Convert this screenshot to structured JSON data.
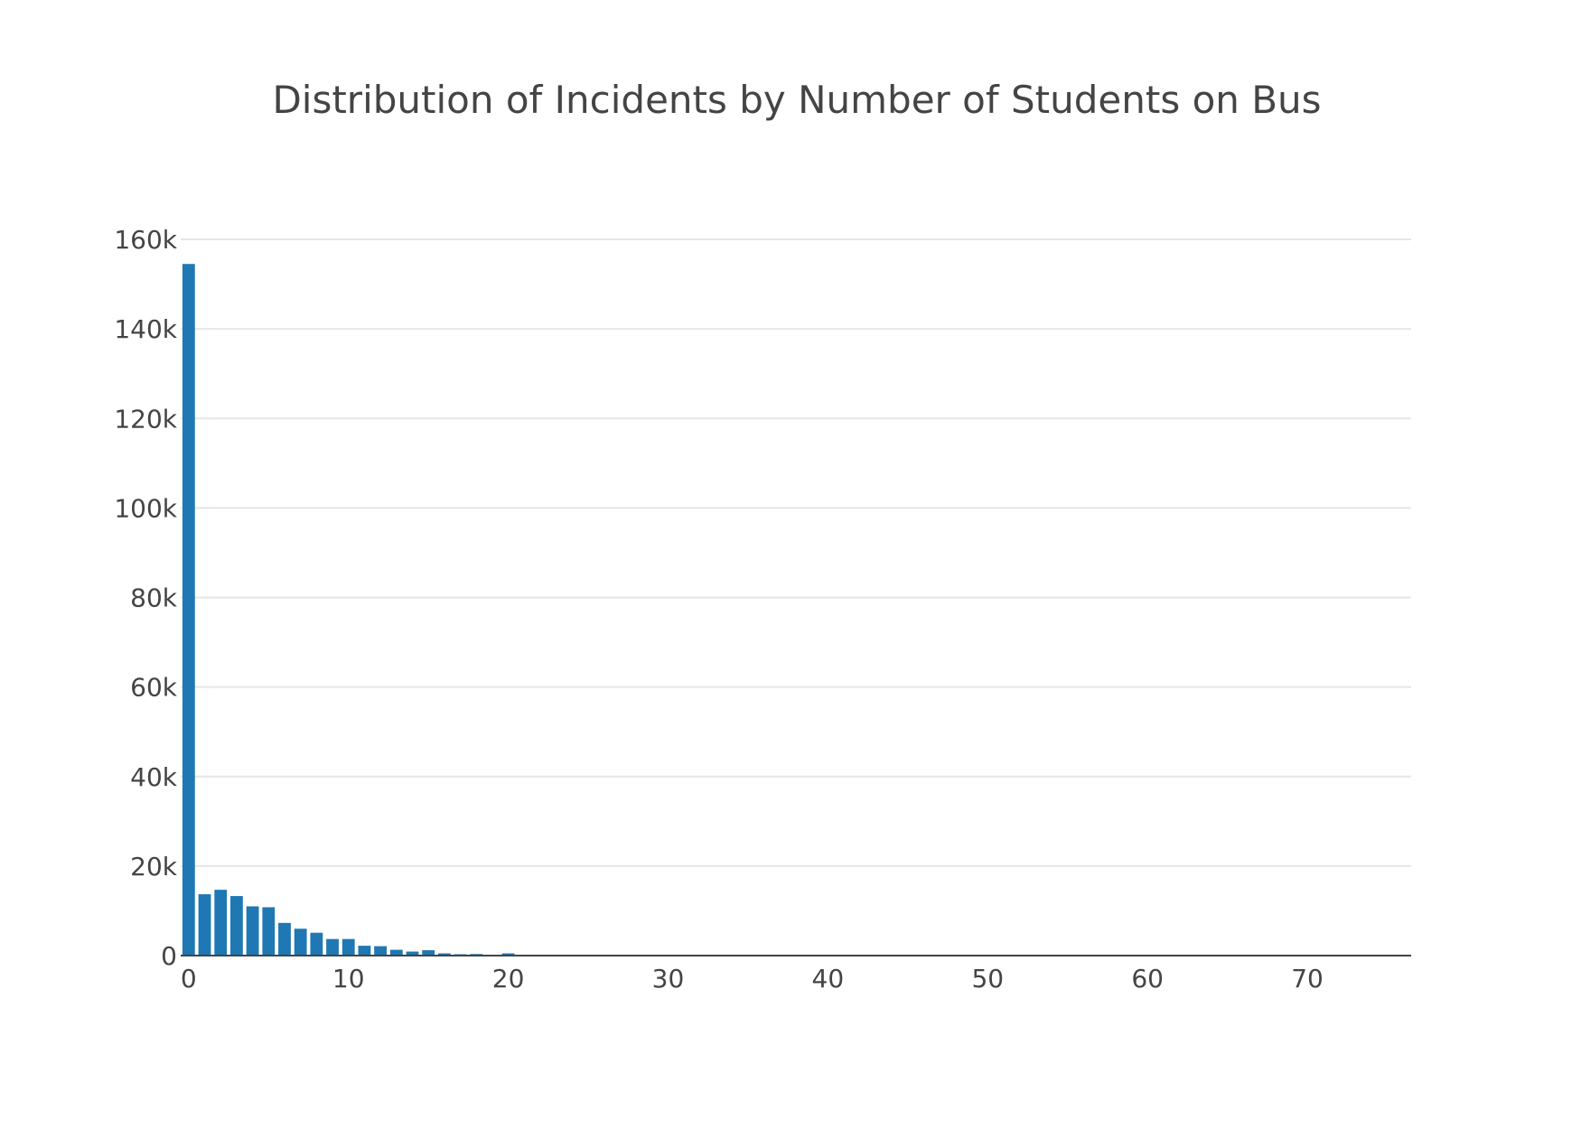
{
  "chart_data": {
    "type": "bar",
    "title": "Distribution of Incidents by Number of Students on Bus",
    "xlabel": "",
    "ylabel": "",
    "bar_color": "#1f77b4",
    "grid": true,
    "legend": "none",
    "xlim": [
      -0.5,
      76.5
    ],
    "ylim": [
      0,
      160000
    ],
    "x_ticks": [
      0,
      10,
      20,
      30,
      40,
      50,
      60,
      70
    ],
    "x_tick_labels": [
      "0",
      "10",
      "20",
      "30",
      "40",
      "50",
      "60",
      "70"
    ],
    "y_ticks": [
      0,
      20000,
      40000,
      60000,
      80000,
      100000,
      120000,
      140000,
      160000
    ],
    "y_tick_labels": [
      "0",
      "20k",
      "40k",
      "60k",
      "80k",
      "100k",
      "120k",
      "140k",
      "160k"
    ],
    "x": [
      0,
      1,
      2,
      3,
      4,
      5,
      6,
      7,
      8,
      9,
      10,
      11,
      12,
      13,
      14,
      15,
      16,
      17,
      18,
      19,
      20,
      21,
      22,
      23,
      24,
      25,
      26,
      27,
      28,
      29,
      30,
      31,
      32,
      33,
      34,
      35,
      36,
      37,
      38,
      39,
      40
    ],
    "values": [
      154500,
      13700,
      14700,
      13300,
      11000,
      10800,
      7300,
      6000,
      5100,
      3700,
      3700,
      2200,
      2100,
      1300,
      900,
      1200,
      500,
      300,
      350,
      150,
      500,
      150,
      100,
      80,
      60,
      150,
      40,
      30,
      30,
      20,
      120,
      20,
      15,
      10,
      10,
      15,
      10,
      8,
      8,
      5,
      80
    ]
  }
}
